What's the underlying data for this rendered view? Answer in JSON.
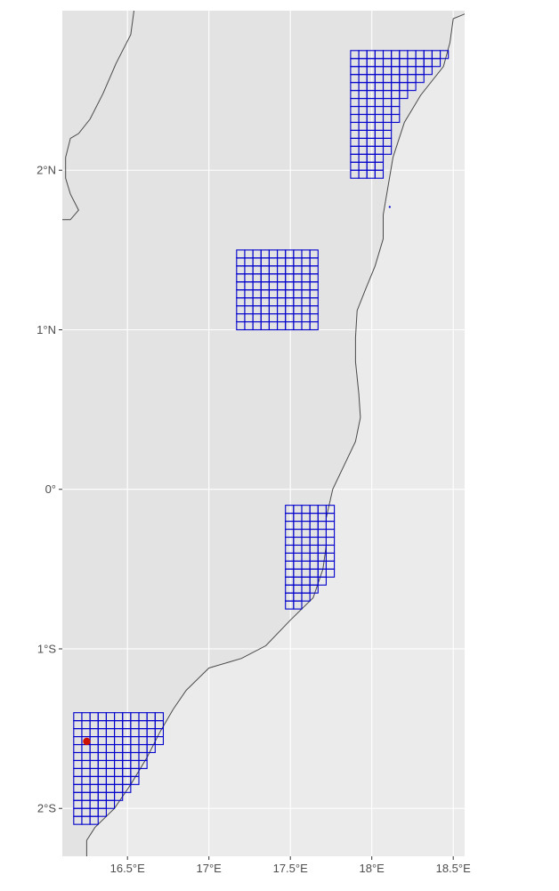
{
  "map": {
    "type": "map",
    "panel_background": "#ebebeb",
    "land_fill": "#e3e3e3",
    "coastline_color": "#4a4a4a",
    "grid_color": "#ffffff",
    "cell_outline_color": "#0000cc",
    "highlight_color": "#cc1100",
    "xlim": [
      16.1,
      18.57
    ],
    "ylim": [
      -2.3,
      3.0
    ],
    "lon_ticks": [
      {
        "value": 16.5,
        "label": "16.5°E"
      },
      {
        "value": 17.0,
        "label": "17°E"
      },
      {
        "value": 17.5,
        "label": "17.5°E"
      },
      {
        "value": 18.0,
        "label": "18°E"
      },
      {
        "value": 18.5,
        "label": "18.5°E"
      }
    ],
    "lat_ticks": [
      {
        "value": 2,
        "label": "2°N"
      },
      {
        "value": 1,
        "label": "1°N"
      },
      {
        "value": 0,
        "label": "0°"
      },
      {
        "value": -1,
        "label": "1°S"
      },
      {
        "value": -2,
        "label": "2°S"
      }
    ],
    "coastline": [
      [
        18.62,
        3.0
      ],
      [
        18.5,
        2.95
      ],
      [
        18.48,
        2.8
      ],
      [
        18.44,
        2.65
      ],
      [
        18.3,
        2.47
      ],
      [
        18.2,
        2.3
      ],
      [
        18.13,
        2.08
      ],
      [
        18.1,
        1.9
      ],
      [
        18.07,
        1.72
      ],
      [
        18.07,
        1.57
      ],
      [
        18.02,
        1.4
      ],
      [
        17.96,
        1.25
      ],
      [
        17.91,
        1.12
      ],
      [
        17.9,
        0.95
      ],
      [
        17.9,
        0.8
      ],
      [
        17.92,
        0.6
      ],
      [
        17.93,
        0.45
      ],
      [
        17.9,
        0.3
      ],
      [
        17.83,
        0.15
      ],
      [
        17.76,
        0.0
      ],
      [
        17.72,
        -0.18
      ],
      [
        17.72,
        -0.35
      ],
      [
        17.7,
        -0.5
      ],
      [
        17.64,
        -0.68
      ],
      [
        17.5,
        -0.82
      ],
      [
        17.35,
        -0.98
      ],
      [
        17.2,
        -1.06
      ],
      [
        17.0,
        -1.12
      ],
      [
        16.86,
        -1.26
      ],
      [
        16.78,
        -1.38
      ],
      [
        16.7,
        -1.52
      ],
      [
        16.62,
        -1.68
      ],
      [
        16.52,
        -1.85
      ],
      [
        16.42,
        -2.0
      ],
      [
        16.3,
        -2.12
      ],
      [
        16.25,
        -2.2
      ],
      [
        16.25,
        -2.3
      ]
    ],
    "west_shore": [
      [
        16.54,
        3.0
      ],
      [
        16.52,
        2.85
      ],
      [
        16.43,
        2.67
      ],
      [
        16.35,
        2.48
      ],
      [
        16.27,
        2.32
      ],
      [
        16.2,
        2.23
      ],
      [
        16.15,
        2.2
      ],
      [
        16.12,
        2.08
      ],
      [
        16.12,
        1.95
      ],
      [
        16.15,
        1.85
      ],
      [
        16.2,
        1.75
      ],
      [
        16.15,
        1.69
      ],
      [
        16.1,
        1.69
      ]
    ],
    "grid_blocks": [
      {
        "name": "northeast",
        "cell_size": 0.05,
        "rows": [
          {
            "lat_top": 2.75,
            "lon_start": 17.87,
            "lon_end": 18.47
          },
          {
            "lat_top": 2.7,
            "lon_start": 17.87,
            "lon_end": 18.42
          },
          {
            "lat_top": 2.65,
            "lon_start": 17.87,
            "lon_end": 18.37
          },
          {
            "lat_top": 2.6,
            "lon_start": 17.87,
            "lon_end": 18.32
          },
          {
            "lat_top": 2.55,
            "lon_start": 17.87,
            "lon_end": 18.27
          },
          {
            "lat_top": 2.5,
            "lon_start": 17.87,
            "lon_end": 18.22
          },
          {
            "lat_top": 2.45,
            "lon_start": 17.87,
            "lon_end": 18.17
          },
          {
            "lat_top": 2.4,
            "lon_start": 17.87,
            "lon_end": 18.17
          },
          {
            "lat_top": 2.35,
            "lon_start": 17.87,
            "lon_end": 18.17
          },
          {
            "lat_top": 2.3,
            "lon_start": 17.87,
            "lon_end": 18.12
          },
          {
            "lat_top": 2.25,
            "lon_start": 17.87,
            "lon_end": 18.12
          },
          {
            "lat_top": 2.2,
            "lon_start": 17.87,
            "lon_end": 18.12
          },
          {
            "lat_top": 2.15,
            "lon_start": 17.87,
            "lon_end": 18.12
          },
          {
            "lat_top": 2.1,
            "lon_start": 17.87,
            "lon_end": 18.07
          },
          {
            "lat_top": 2.05,
            "lon_start": 17.87,
            "lon_end": 18.07
          },
          {
            "lat_top": 2.0,
            "lon_start": 17.87,
            "lon_end": 18.07
          }
        ]
      },
      {
        "name": "center",
        "cell_size": 0.05,
        "rows": [
          {
            "lat_top": 1.5,
            "lon_start": 17.17,
            "lon_end": 17.67
          },
          {
            "lat_top": 1.45,
            "lon_start": 17.17,
            "lon_end": 17.67
          },
          {
            "lat_top": 1.4,
            "lon_start": 17.17,
            "lon_end": 17.67
          },
          {
            "lat_top": 1.35,
            "lon_start": 17.17,
            "lon_end": 17.67
          },
          {
            "lat_top": 1.3,
            "lon_start": 17.17,
            "lon_end": 17.67
          },
          {
            "lat_top": 1.25,
            "lon_start": 17.17,
            "lon_end": 17.67
          },
          {
            "lat_top": 1.2,
            "lon_start": 17.17,
            "lon_end": 17.67
          },
          {
            "lat_top": 1.15,
            "lon_start": 17.17,
            "lon_end": 17.67
          },
          {
            "lat_top": 1.1,
            "lon_start": 17.17,
            "lon_end": 17.67
          },
          {
            "lat_top": 1.05,
            "lon_start": 17.17,
            "lon_end": 17.67
          }
        ]
      },
      {
        "name": "south-center",
        "cell_size": 0.05,
        "rows": [
          {
            "lat_top": -0.1,
            "lon_start": 17.47,
            "lon_end": 17.77
          },
          {
            "lat_top": -0.15,
            "lon_start": 17.47,
            "lon_end": 17.77
          },
          {
            "lat_top": -0.2,
            "lon_start": 17.47,
            "lon_end": 17.77
          },
          {
            "lat_top": -0.25,
            "lon_start": 17.47,
            "lon_end": 17.77
          },
          {
            "lat_top": -0.3,
            "lon_start": 17.47,
            "lon_end": 17.77
          },
          {
            "lat_top": -0.35,
            "lon_start": 17.47,
            "lon_end": 17.77
          },
          {
            "lat_top": -0.4,
            "lon_start": 17.47,
            "lon_end": 17.77
          },
          {
            "lat_top": -0.45,
            "lon_start": 17.47,
            "lon_end": 17.77
          },
          {
            "lat_top": -0.5,
            "lon_start": 17.47,
            "lon_end": 17.77
          },
          {
            "lat_top": -0.55,
            "lon_start": 17.47,
            "lon_end": 17.72
          },
          {
            "lat_top": -0.6,
            "lon_start": 17.47,
            "lon_end": 17.67
          },
          {
            "lat_top": -0.65,
            "lon_start": 17.47,
            "lon_end": 17.62
          },
          {
            "lat_top": -0.7,
            "lon_start": 17.47,
            "lon_end": 17.57
          }
        ]
      },
      {
        "name": "southwest",
        "cell_size": 0.05,
        "rows": [
          {
            "lat_top": -1.4,
            "lon_start": 16.17,
            "lon_end": 16.72
          },
          {
            "lat_top": -1.45,
            "lon_start": 16.17,
            "lon_end": 16.72
          },
          {
            "lat_top": -1.5,
            "lon_start": 16.17,
            "lon_end": 16.72
          },
          {
            "lat_top": -1.55,
            "lon_start": 16.17,
            "lon_end": 16.72
          },
          {
            "lat_top": -1.6,
            "lon_start": 16.17,
            "lon_end": 16.67
          },
          {
            "lat_top": -1.65,
            "lon_start": 16.17,
            "lon_end": 16.62
          },
          {
            "lat_top": -1.7,
            "lon_start": 16.17,
            "lon_end": 16.62
          },
          {
            "lat_top": -1.75,
            "lon_start": 16.17,
            "lon_end": 16.57
          },
          {
            "lat_top": -1.8,
            "lon_start": 16.17,
            "lon_end": 16.57
          },
          {
            "lat_top": -1.85,
            "lon_start": 16.17,
            "lon_end": 16.52
          },
          {
            "lat_top": -1.9,
            "lon_start": 16.17,
            "lon_end": 16.47
          },
          {
            "lat_top": -1.95,
            "lon_start": 16.17,
            "lon_end": 16.42
          },
          {
            "lat_top": -2.0,
            "lon_start": 16.17,
            "lon_end": 16.37
          },
          {
            "lat_top": -2.05,
            "lon_start": 16.17,
            "lon_end": 16.32
          }
        ]
      }
    ],
    "highlight_point": {
      "lon": 16.25,
      "lat": -1.58
    },
    "small_dot": {
      "lon": 18.11,
      "lat": 1.77
    }
  }
}
